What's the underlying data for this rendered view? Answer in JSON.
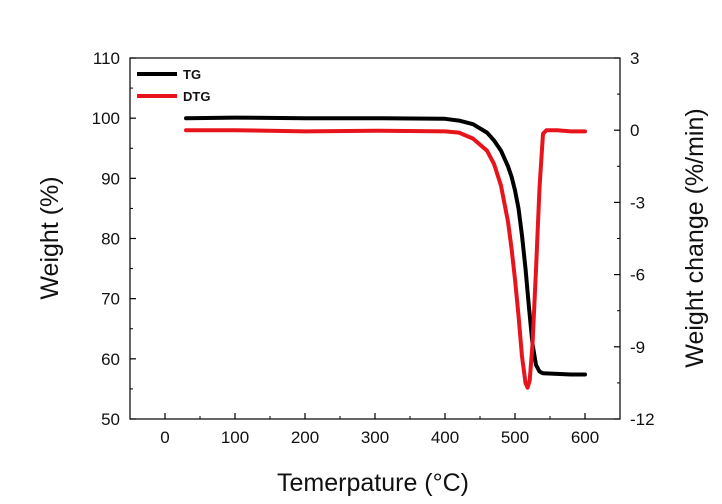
{
  "chart_data": {
    "type": "line",
    "title": "",
    "xlabel": "Temerpature (°C)",
    "ylabel_left": "Weight (%)",
    "ylabel_right": "Weight change (%/min)",
    "xlim": [
      -50,
      650
    ],
    "ylim_left": [
      50,
      110
    ],
    "ylim_right": [
      -12,
      3
    ],
    "x_ticks": [
      0,
      100,
      200,
      300,
      400,
      500,
      600
    ],
    "y_left_ticks": [
      50,
      60,
      70,
      80,
      90,
      100,
      110
    ],
    "y_right_ticks": [
      -12,
      -9,
      -6,
      -3,
      0,
      3
    ],
    "grid": false,
    "legend_position": "top-left",
    "series": [
      {
        "name": "TG",
        "axis": "left",
        "color": "#000000",
        "x": [
          30,
          100,
          200,
          300,
          400,
          420,
          440,
          460,
          470,
          480,
          490,
          495,
          500,
          505,
          510,
          515,
          520,
          525,
          530,
          535,
          540,
          560,
          580,
          600
        ],
        "y": [
          100.0,
          100.1,
          100.0,
          100.0,
          99.9,
          99.6,
          99.0,
          97.6,
          96.3,
          94.6,
          92.0,
          90.3,
          88.0,
          85.0,
          80.5,
          75.0,
          68.5,
          62.5,
          59.0,
          57.9,
          57.6,
          57.5,
          57.4,
          57.4
        ]
      },
      {
        "name": "DTG",
        "axis": "right",
        "color": "#e8141b",
        "x": [
          30,
          100,
          200,
          300,
          400,
          420,
          440,
          460,
          470,
          480,
          490,
          495,
          500,
          505,
          510,
          515,
          518,
          521,
          525,
          530,
          535,
          540,
          545,
          560,
          580,
          600
        ],
        "y": [
          0.0,
          0.0,
          -0.05,
          -0.02,
          -0.05,
          -0.1,
          -0.35,
          -0.85,
          -1.4,
          -2.3,
          -3.8,
          -4.9,
          -6.2,
          -7.7,
          -9.4,
          -10.5,
          -10.7,
          -10.4,
          -8.9,
          -5.8,
          -2.4,
          -0.15,
          0.0,
          0.0,
          -0.05,
          -0.05
        ]
      }
    ]
  }
}
